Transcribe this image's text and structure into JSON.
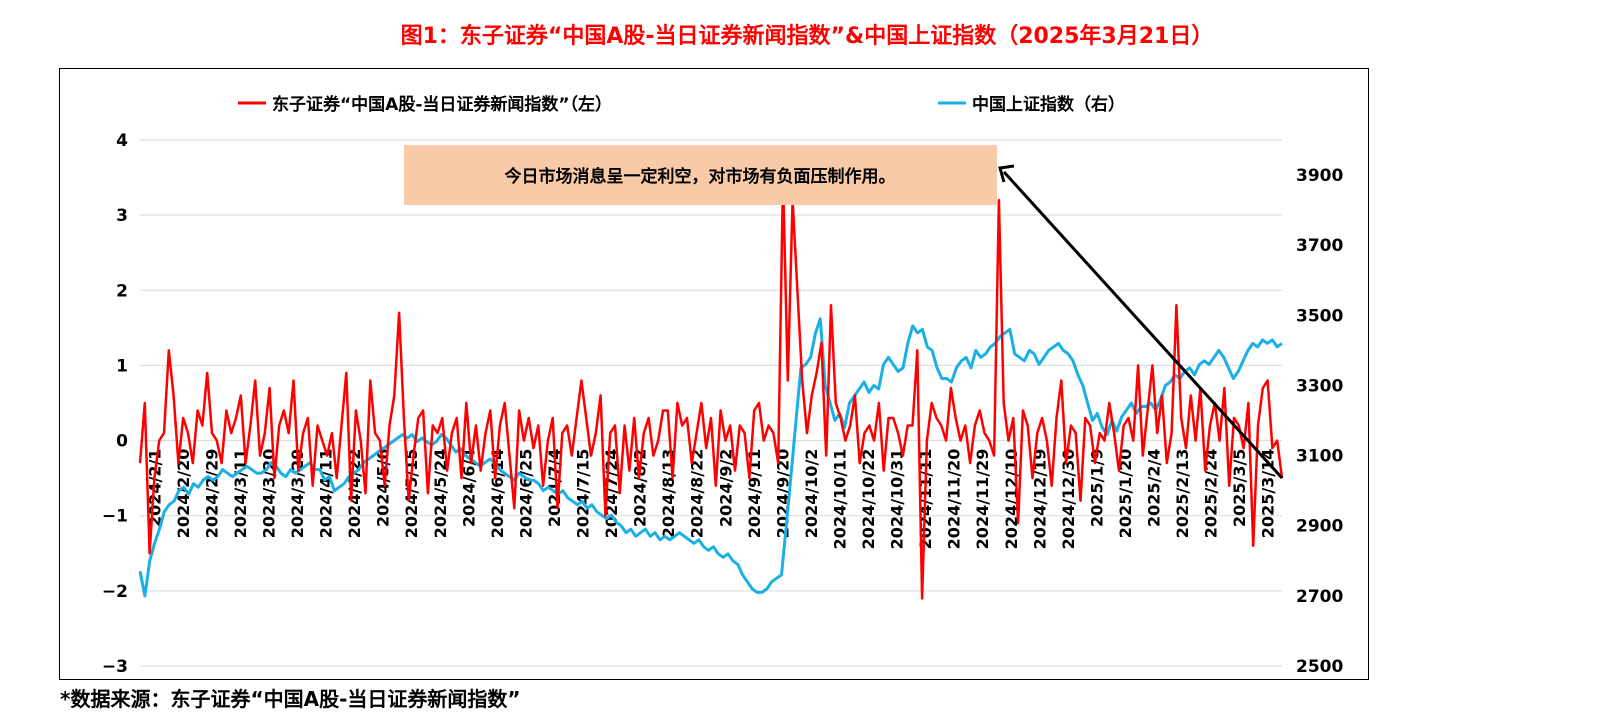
{
  "title": "图1：东子证券“中国A股-当日证券新闻指数”&中国上证指数（2025年3月21日）",
  "footnote": "*数据来源：东子证券“中国A股-当日证券新闻指数”",
  "annotation": "今日市场消息呈一定利空，对市场有负面压制作用。",
  "colors": {
    "title": "#ff0000",
    "news_series": "#ff0000",
    "index_series": "#1ab0e6",
    "annotation_bg": "#f8caa8",
    "grid": "#d9d9d9"
  },
  "chart_data": {
    "type": "line",
    "legend_position": "top",
    "grid": true,
    "left_axis": {
      "ylim": [
        -3,
        4
      ],
      "ticks": [
        "4",
        "3",
        "2",
        "1",
        "0",
        "−1",
        "−2",
        "−3"
      ]
    },
    "right_axis": {
      "ylim": [
        2500,
        4000
      ],
      "ticks": [
        "3900",
        "3700",
        "3500",
        "3300",
        "3100",
        "2900",
        "2700",
        "2500"
      ]
    },
    "x_labels": [
      "2024/2/1",
      "2024/2/20",
      "2024/2/29",
      "2024/3/11",
      "2024/3/20",
      "2024/3/29",
      "2024/4/11",
      "2024/4/22",
      "2024/5/6",
      "2024/5/15",
      "2024/5/24",
      "2024/6/4",
      "2024/6/14",
      "2024/6/25",
      "2024/7/4",
      "2024/7/15",
      "2024/7/24",
      "2024/8/2",
      "2024/8/13",
      "2024/8/22",
      "2024/9/2",
      "2024/9/11",
      "2024/9/20",
      "2024/10/2",
      "2024/10/11",
      "2024/10/22",
      "2024/10/31",
      "2024/11/11",
      "2024/11/20",
      "2024/11/29",
      "2024/12/10",
      "2024/12/19",
      "2024/12/30",
      "2025/1/9",
      "2025/1/20",
      "2025/2/4",
      "2025/2/13",
      "2025/2/24",
      "2025/3/5",
      "2025/3/14"
    ],
    "series": [
      {
        "name": "东子证券“中国A股-当日证券新闻指数”（左）",
        "axis": "left",
        "values": [
          -0.3,
          0.5,
          -1.5,
          -0.5,
          0.0,
          0.1,
          1.2,
          0.6,
          -0.3,
          0.3,
          0.1,
          -0.3,
          0.4,
          0.2,
          0.9,
          0.1,
          0.0,
          -0.3,
          0.4,
          0.1,
          0.3,
          0.6,
          -0.3,
          0.2,
          0.8,
          -0.2,
          0.1,
          0.7,
          -0.5,
          0.2,
          0.4,
          0.1,
          0.8,
          -0.4,
          0.1,
          0.3,
          -0.6,
          0.2,
          0.0,
          -0.2,
          0.1,
          -0.5,
          0.2,
          0.9,
          -0.8,
          0.4,
          0.0,
          -0.7,
          0.8,
          0.1,
          0.0,
          -0.6,
          0.2,
          0.6,
          1.7,
          0.3,
          -0.8,
          -0.2,
          0.3,
          0.4,
          -0.7,
          0.2,
          0.1,
          0.3,
          -0.4,
          0.1,
          0.3,
          -0.5,
          0.5,
          -0.3,
          0.2,
          -0.4,
          0.1,
          0.4,
          -0.5,
          0.2,
          0.5,
          -0.2,
          -0.9,
          0.4,
          0.0,
          0.3,
          -0.1,
          0.2,
          -0.6,
          0.0,
          0.3,
          -0.9,
          0.1,
          0.2,
          -0.2,
          0.3,
          0.8,
          0.3,
          -0.2,
          0.1,
          0.6,
          -1.0,
          0.1,
          0.2,
          -0.7,
          0.2,
          -0.4,
          0.3,
          -0.5,
          0.1,
          0.3,
          -0.2,
          0.0,
          0.4,
          0.4,
          -0.5,
          0.5,
          0.2,
          0.3,
          -0.3,
          0.1,
          0.5,
          -0.1,
          0.3,
          -0.6,
          0.4,
          0.0,
          0.2,
          -0.4,
          0.2,
          0.1,
          -0.5,
          0.4,
          0.5,
          0.0,
          0.2,
          0.1,
          -0.3,
          3.5,
          0.8,
          3.2,
          2.0,
          0.8,
          0.1,
          0.6,
          0.9,
          1.3,
          -0.2,
          1.8,
          0.5,
          0.3,
          0.0,
          0.2,
          0.6,
          -0.3,
          0.1,
          0.2,
          0.0,
          0.5,
          -0.4,
          0.3,
          0.3,
          0.1,
          -0.2,
          0.2,
          0.2,
          1.2,
          -2.1,
          0.0,
          0.5,
          0.3,
          0.2,
          0.0,
          0.7,
          0.3,
          0.0,
          0.2,
          -0.3,
          0.2,
          0.4,
          0.1,
          0.0,
          -0.2,
          3.2,
          0.5,
          0.0,
          0.3,
          -1.1,
          0.4,
          0.2,
          -0.5,
          0.1,
          0.3,
          0.0,
          -0.6,
          0.3,
          0.8,
          -0.3,
          0.2,
          0.1,
          -0.8,
          0.3,
          0.2,
          -0.3,
          0.1,
          0.0,
          0.5,
          0.1,
          -0.4,
          0.2,
          0.3,
          0.0,
          1.0,
          -0.2,
          0.4,
          1.0,
          0.1,
          0.6,
          -0.3,
          0.1,
          1.8,
          0.3,
          -0.1,
          0.6,
          0.0,
          0.7,
          -0.4,
          0.2,
          0.5,
          0.0,
          0.7,
          -0.6,
          0.3,
          0.2,
          -0.1,
          0.5,
          -1.4,
          0.2,
          0.7,
          0.8,
          -0.1,
          0.0,
          -0.5
        ]
      },
      {
        "name": "中国上证指数（右）",
        "axis": "right",
        "values": [
          2770,
          2700,
          2800,
          2850,
          2890,
          2940,
          2960,
          2970,
          3000,
          3010,
          2990,
          3020,
          3010,
          3030,
          3040,
          3030,
          3040,
          3060,
          3050,
          3040,
          3050,
          3060,
          3070,
          3060,
          3050,
          3050,
          3060,
          3080,
          3070,
          3050,
          3040,
          3060,
          3050,
          3060,
          3070,
          3080,
          3060,
          3060,
          3030,
          3040,
          3000,
          3010,
          3020,
          3040,
          3050,
          3060,
          3080,
          3090,
          3100,
          3110,
          3120,
          3130,
          3140,
          3150,
          3160,
          3150,
          3160,
          3140,
          3150,
          3140,
          3130,
          3140,
          3160,
          3150,
          3130,
          3110,
          3120,
          3100,
          3090,
          3080,
          3070,
          3080,
          3090,
          3080,
          3060,
          3050,
          3040,
          3030,
          3050,
          3040,
          3030,
          3030,
          3020,
          3000,
          3010,
          3000,
          2990,
          3000,
          2980,
          2970,
          2960,
          2970,
          2950,
          2960,
          2940,
          2930,
          2920,
          2930,
          2910,
          2900,
          2880,
          2890,
          2870,
          2880,
          2890,
          2870,
          2880,
          2860,
          2870,
          2860,
          2870,
          2880,
          2870,
          2860,
          2850,
          2860,
          2840,
          2830,
          2840,
          2820,
          2810,
          2820,
          2800,
          2790,
          2760,
          2740,
          2720,
          2710,
          2710,
          2720,
          2740,
          2750,
          2760,
          2900,
          3050,
          3200,
          3350,
          3360,
          3380,
          3450,
          3490,
          3300,
          3250,
          3200,
          3220,
          3180,
          3250,
          3270,
          3290,
          3310,
          3280,
          3300,
          3290,
          3360,
          3380,
          3360,
          3340,
          3350,
          3420,
          3470,
          3450,
          3460,
          3410,
          3400,
          3350,
          3320,
          3320,
          3310,
          3350,
          3370,
          3380,
          3350,
          3400,
          3380,
          3390,
          3410,
          3420,
          3440,
          3450,
          3460,
          3390,
          3380,
          3370,
          3400,
          3390,
          3360,
          3380,
          3400,
          3410,
          3420,
          3400,
          3390,
          3370,
          3330,
          3300,
          3250,
          3200,
          3220,
          3180,
          3160,
          3200,
          3170,
          3210,
          3230,
          3250,
          3220,
          3240,
          3240,
          3250,
          3230,
          3260,
          3300,
          3310,
          3330,
          3320,
          3340,
          3350,
          3330,
          3360,
          3370,
          3360,
          3380,
          3400,
          3380,
          3350,
          3320,
          3340,
          3370,
          3400,
          3420,
          3410,
          3430,
          3420,
          3430,
          3410,
          3420
        ]
      }
    ]
  }
}
